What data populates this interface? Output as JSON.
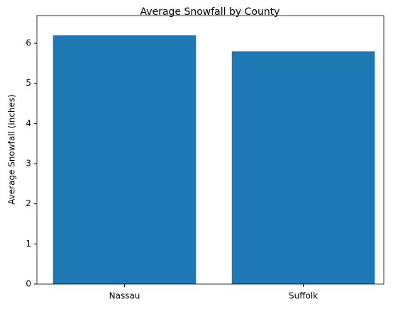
{
  "chart_data": {
    "type": "bar",
    "title": "Average Snowfall by County",
    "y_label": "Average Snowfall (inches)",
    "categories": [
      "Nassau",
      "Suffolk"
    ],
    "values": [
      6.2,
      5.8
    ],
    "color": "#1f77b4",
    "ylim": [
      0,
      6.69
    ],
    "yticks": [
      0,
      1,
      2,
      3,
      4,
      5,
      6
    ]
  }
}
